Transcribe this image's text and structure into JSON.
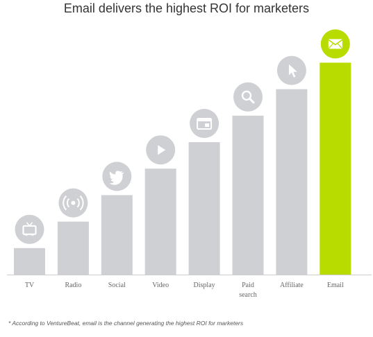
{
  "chart_data": {
    "type": "bar",
    "title": "Email delivers the highest ROI for marketers",
    "categories": [
      "TV",
      "Radio",
      "Social",
      "Video",
      "Display",
      "Paid search",
      "Affiliate",
      "Email"
    ],
    "label_lines": [
      [
        "TV"
      ],
      [
        "Radio"
      ],
      [
        "Social"
      ],
      [
        "Video"
      ],
      [
        "Display"
      ],
      [
        "Paid",
        "search"
      ],
      [
        "Affiliate"
      ],
      [
        "Email"
      ]
    ],
    "values": [
      1,
      2,
      3,
      4,
      5,
      6,
      7,
      8
    ],
    "icons": [
      "tv-icon",
      "radio-broadcast-icon",
      "twitter-bird-icon",
      "play-icon",
      "browser-window-icon",
      "search-icon",
      "cursor-icon",
      "envelope-icon"
    ],
    "highlight": "Email",
    "xlabel": "",
    "ylabel": "",
    "ylim": [
      0,
      8
    ],
    "grid": false,
    "colors": {
      "bar": "#cfd0d3",
      "highlight": "#b8db00",
      "icon_fill": "#ffffff",
      "axis": "#cccccc"
    }
  },
  "footnote": "* According to VentureBeat, email is the channel generating the highest ROI for marketers"
}
